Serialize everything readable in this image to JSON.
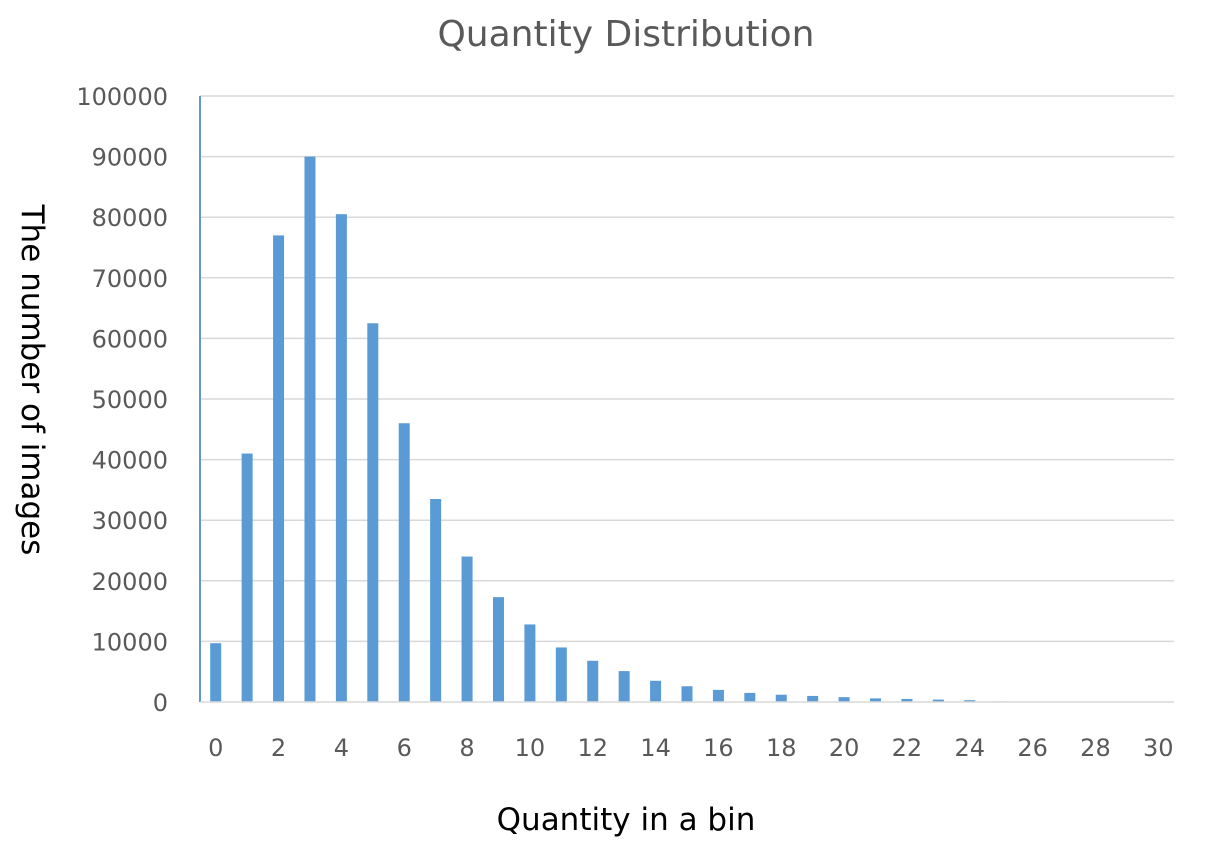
{
  "chart_data": {
    "type": "bar",
    "title": "Quantity Distribution",
    "xlabel": "Quantity in a bin",
    "ylabel": "The number of images",
    "categories": [
      0,
      1,
      2,
      3,
      4,
      5,
      6,
      7,
      8,
      9,
      10,
      11,
      12,
      13,
      14,
      15,
      16,
      17,
      18,
      19,
      20,
      21,
      22,
      23,
      24,
      25,
      26,
      27,
      28,
      29,
      30
    ],
    "values": [
      9700,
      41000,
      77000,
      90000,
      80500,
      62500,
      46000,
      33500,
      24000,
      17300,
      12800,
      9000,
      6800,
      5100,
      3500,
      2600,
      2000,
      1500,
      1200,
      1000,
      800,
      600,
      500,
      400,
      300,
      100,
      50,
      30,
      20,
      10,
      5
    ],
    "x_tick_labels": [
      "0",
      "2",
      "4",
      "6",
      "8",
      "10",
      "12",
      "14",
      "16",
      "18",
      "20",
      "22",
      "24",
      "26",
      "28",
      "30"
    ],
    "y_tick_labels": [
      "0",
      "10000",
      "20000",
      "30000",
      "40000",
      "50000",
      "60000",
      "70000",
      "80000",
      "90000",
      "100000"
    ],
    "ylim": [
      0,
      100000
    ],
    "xlim": [
      0,
      30
    ],
    "grid": true,
    "legend": "none",
    "colors": {
      "bar": "#5b9bd5",
      "y_axis": "#5b9bd5",
      "grid": "#d9d9d9",
      "text": "#595959"
    }
  }
}
